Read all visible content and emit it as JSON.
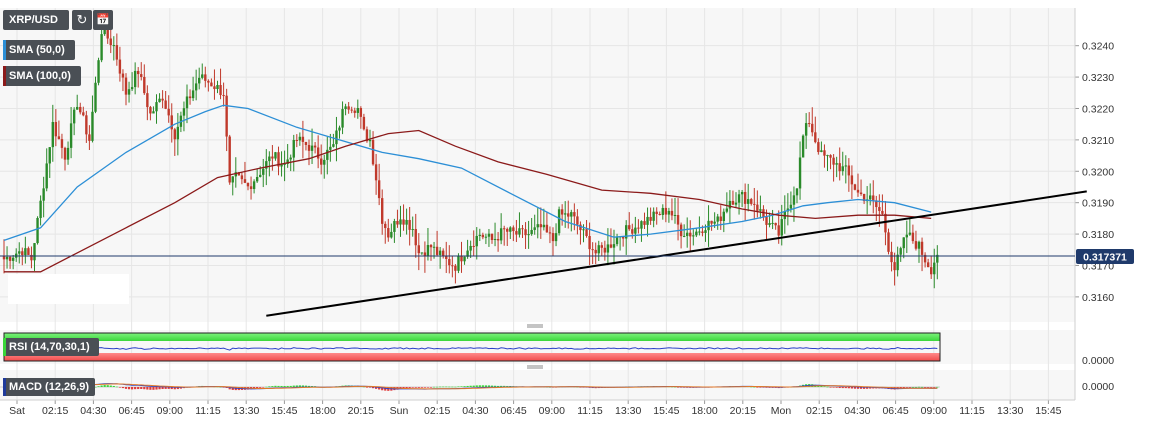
{
  "header": {
    "symbol": "XRP/USD",
    "studies": [
      {
        "label": "SMA (50,0)",
        "color": "#2c8fd6"
      },
      {
        "label": "SMA (100,0)",
        "color": "#8b1a1a"
      }
    ]
  },
  "indicators": {
    "rsi_label": "RSI (14,70,30,1)",
    "macd_label": "MACD (12,26,9)",
    "rsi_axis_label": "0.0000",
    "macd_axis_label": "0.0000"
  },
  "chart_data": {
    "type": "candlestick",
    "symbol": "XRP/USD",
    "ylim": [
      0.3152,
      0.3252
    ],
    "y_ticks": [
      "0.3160",
      "0.3170",
      "0.3180",
      "0.3190",
      "0.3200",
      "0.3210",
      "0.3220",
      "0.3230",
      "0.3240"
    ],
    "x_ticks": [
      "Sat",
      "02:15",
      "04:30",
      "06:45",
      "09:00",
      "11:15",
      "13:30",
      "15:45",
      "18:00",
      "20:15",
      "Sun",
      "02:15",
      "04:30",
      "06:45",
      "09:00",
      "11:15",
      "13:30",
      "15:45",
      "18:00",
      "20:15",
      "Mon",
      "02:15",
      "04:30",
      "06:45",
      "09:00",
      "11:15",
      "13:30",
      "15:45"
    ],
    "last_price": "0.317371",
    "last_price_value": 0.317371,
    "close_path": [
      [
        0,
        0.3172
      ],
      [
        6,
        0.3175
      ],
      [
        9,
        0.3172
      ],
      [
        12,
        0.319
      ],
      [
        16,
        0.3215
      ],
      [
        20,
        0.3205
      ],
      [
        24,
        0.3222
      ],
      [
        28,
        0.321
      ],
      [
        32,
        0.3245
      ],
      [
        36,
        0.324
      ],
      [
        40,
        0.3225
      ],
      [
        44,
        0.3232
      ],
      [
        48,
        0.3218
      ],
      [
        52,
        0.3224
      ],
      [
        56,
        0.3212
      ],
      [
        60,
        0.3222
      ],
      [
        64,
        0.323
      ],
      [
        68,
        0.3228
      ],
      [
        72,
        0.3225
      ],
      [
        74,
        0.3195
      ],
      [
        76,
        0.3198
      ],
      [
        80,
        0.3195
      ],
      [
        84,
        0.32
      ],
      [
        88,
        0.3205
      ],
      [
        92,
        0.3202
      ],
      [
        96,
        0.321
      ],
      [
        100,
        0.3208
      ],
      [
        104,
        0.3204
      ],
      [
        108,
        0.3208
      ],
      [
        112,
        0.3222
      ],
      [
        116,
        0.322
      ],
      [
        118,
        0.3212
      ],
      [
        120,
        0.321
      ],
      [
        122,
        0.3198
      ],
      [
        124,
        0.3185
      ],
      [
        126,
        0.318
      ],
      [
        130,
        0.3186
      ],
      [
        134,
        0.3182
      ],
      [
        136,
        0.3174
      ],
      [
        140,
        0.3176
      ],
      [
        144,
        0.3172
      ],
      [
        148,
        0.317
      ],
      [
        152,
        0.3176
      ],
      [
        156,
        0.318
      ],
      [
        160,
        0.3178
      ],
      [
        164,
        0.3181
      ],
      [
        168,
        0.318
      ],
      [
        172,
        0.318
      ],
      [
        176,
        0.3182
      ],
      [
        180,
        0.3178
      ],
      [
        182,
        0.3186
      ],
      [
        186,
        0.3186
      ],
      [
        190,
        0.318
      ],
      [
        194,
        0.3174
      ],
      [
        198,
        0.3176
      ],
      [
        202,
        0.318
      ],
      [
        206,
        0.3182
      ],
      [
        210,
        0.3184
      ],
      [
        214,
        0.3186
      ],
      [
        218,
        0.3188
      ],
      [
        222,
        0.3181
      ],
      [
        226,
        0.318
      ],
      [
        230,
        0.3183
      ],
      [
        234,
        0.3184
      ],
      [
        238,
        0.3191
      ],
      [
        242,
        0.3192
      ],
      [
        246,
        0.319
      ],
      [
        250,
        0.3184
      ],
      [
        254,
        0.318
      ],
      [
        256,
        0.3186
      ],
      [
        260,
        0.3196
      ],
      [
        262,
        0.3211
      ],
      [
        264,
        0.3216
      ],
      [
        266,
        0.321
      ],
      [
        268,
        0.3205
      ],
      [
        272,
        0.3203
      ],
      [
        276,
        0.32
      ],
      [
        280,
        0.3193
      ],
      [
        284,
        0.3191
      ],
      [
        288,
        0.3186
      ],
      [
        290,
        0.3176
      ],
      [
        292,
        0.3169
      ],
      [
        296,
        0.318
      ],
      [
        300,
        0.3176
      ],
      [
        302,
        0.3172
      ],
      [
        304,
        0.3169
      ],
      [
        306,
        0.3174
      ]
    ],
    "sma50_path": [
      [
        0,
        0.3178
      ],
      [
        12,
        0.3182
      ],
      [
        24,
        0.3195
      ],
      [
        40,
        0.3206
      ],
      [
        56,
        0.3215
      ],
      [
        66,
        0.3219
      ],
      [
        72,
        0.3221
      ],
      [
        80,
        0.322
      ],
      [
        96,
        0.3214
      ],
      [
        110,
        0.321
      ],
      [
        124,
        0.3206
      ],
      [
        136,
        0.3204
      ],
      [
        150,
        0.3201
      ],
      [
        166,
        0.3193
      ],
      [
        184,
        0.3184
      ],
      [
        200,
        0.3179
      ],
      [
        212,
        0.318
      ],
      [
        228,
        0.3182
      ],
      [
        242,
        0.3184
      ],
      [
        252,
        0.3186
      ],
      [
        262,
        0.3189
      ],
      [
        270,
        0.319
      ],
      [
        280,
        0.3191
      ],
      [
        292,
        0.319
      ],
      [
        304,
        0.3187
      ]
    ],
    "sma100_path": [
      [
        0,
        0.3168
      ],
      [
        12,
        0.3168
      ],
      [
        24,
        0.3174
      ],
      [
        40,
        0.3182
      ],
      [
        56,
        0.319
      ],
      [
        70,
        0.3198
      ],
      [
        84,
        0.3201
      ],
      [
        100,
        0.3204
      ],
      [
        112,
        0.3208
      ],
      [
        126,
        0.3212
      ],
      [
        136,
        0.3213
      ],
      [
        148,
        0.3208
      ],
      [
        162,
        0.3203
      ],
      [
        178,
        0.3199
      ],
      [
        196,
        0.3194
      ],
      [
        212,
        0.3193
      ],
      [
        228,
        0.3191
      ],
      [
        242,
        0.3188
      ],
      [
        254,
        0.3186
      ],
      [
        266,
        0.3185
      ],
      [
        280,
        0.3186
      ],
      [
        292,
        0.3186
      ],
      [
        304,
        0.3185
      ]
    ],
    "trendline": {
      "from": [
        86,
        0.3154
      ],
      "to": [
        355,
        0.31936
      ]
    },
    "x_slots": 355
  }
}
